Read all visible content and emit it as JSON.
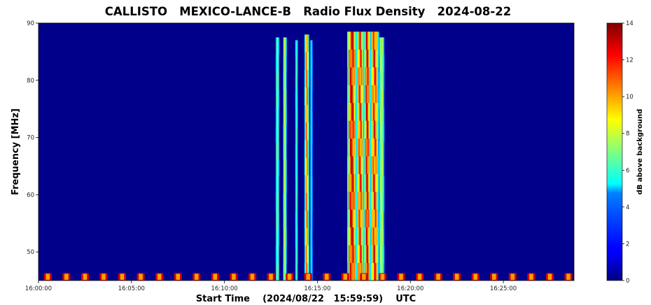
{
  "chart_data": {
    "type": "heatmap",
    "title": "CALLISTO   MEXICO-LANCE-B   Radio Flux Density   2024-08-22",
    "xlabel": "Start Time    (2024/08/22   15:59:59)    UTC",
    "ylabel": "Frequency [MHz]",
    "colorbar_label": "dB above background",
    "colormap": "jet",
    "x_tick_labels": [
      "16:00:00",
      "16:05:00",
      "16:10:00",
      "16:15:00",
      "16:20:00",
      "16:25:00"
    ],
    "x_tick_minutes": [
      0,
      5,
      10,
      15,
      20,
      25
    ],
    "xlim_minutes": [
      0,
      28.8
    ],
    "y_ticks": [
      50,
      60,
      70,
      80,
      90
    ],
    "ylim": [
      45,
      90
    ],
    "colorbar_ticks": [
      0,
      2,
      4,
      6,
      8,
      10,
      12,
      14
    ],
    "colorbar_range": [
      0,
      14
    ],
    "background_level": 1.0,
    "bursts": [
      {
        "t_start": 12.75,
        "t_end": 12.95,
        "f_max": 87.5,
        "peak": 8
      },
      {
        "t_start": 13.15,
        "t_end": 13.35,
        "f_max": 87.5,
        "peak": 9
      },
      {
        "t_start": 13.8,
        "t_end": 13.95,
        "f_max": 87.0,
        "peak": 7
      },
      {
        "t_start": 14.3,
        "t_end": 14.55,
        "f_max": 88.0,
        "peak": 12
      },
      {
        "t_start": 14.6,
        "t_end": 14.75,
        "f_max": 87.0,
        "peak": 6
      },
      {
        "t_start": 16.6,
        "t_end": 17.1,
        "f_max": 88.5,
        "peak": 14
      },
      {
        "t_start": 17.1,
        "t_end": 17.5,
        "f_max": 88.5,
        "peak": 13
      },
      {
        "t_start": 17.5,
        "t_end": 17.85,
        "f_max": 88.5,
        "peak": 14
      },
      {
        "t_start": 17.85,
        "t_end": 18.3,
        "f_max": 88.5,
        "peak": 13
      },
      {
        "t_start": 18.3,
        "t_end": 18.6,
        "f_max": 87.5,
        "peak": 9
      }
    ],
    "rfi_band": {
      "f_min": 45,
      "f_max": 46.3,
      "peak": 14,
      "period_minutes": 1.0
    }
  }
}
